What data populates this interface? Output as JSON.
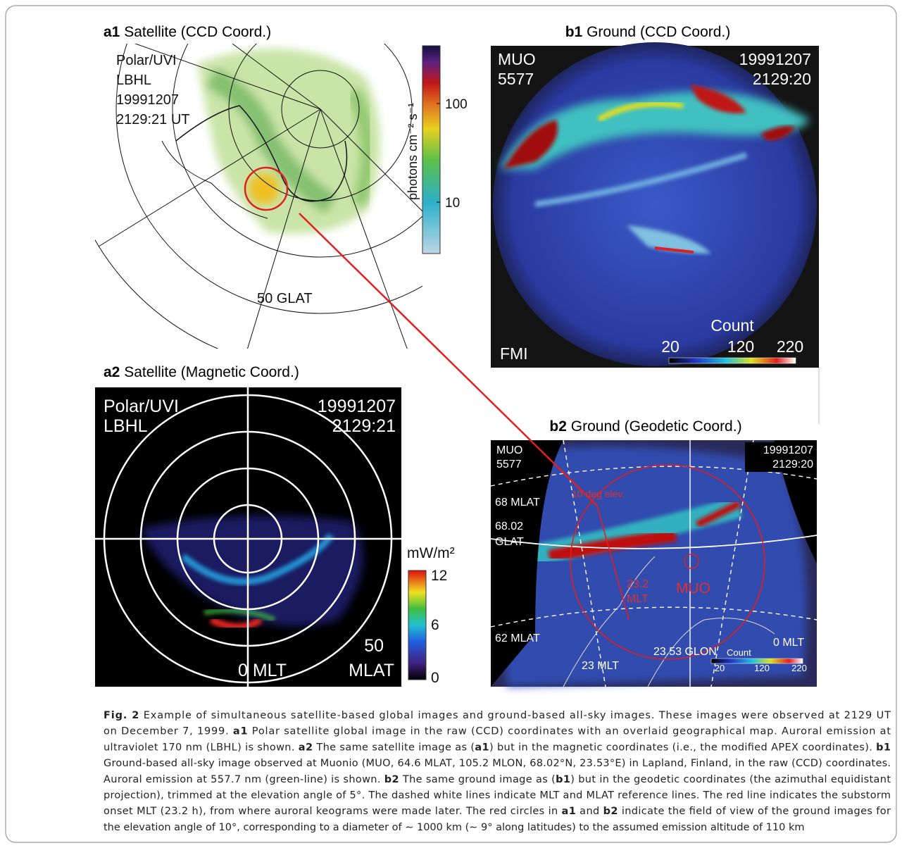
{
  "panels": {
    "a1": {
      "label": "a1",
      "title": "Satellite (CCD Coord.)",
      "texts": [
        "Polar/UVI",
        "LBHL",
        "19991207",
        "2129:21 UT",
        "50 GLAT"
      ],
      "colorbar": {
        "label": "photons cm⁻² s⁻¹",
        "ticks": [
          "100",
          "10"
        ]
      }
    },
    "b1": {
      "label": "b1",
      "title": "Ground (CCD Coord.)",
      "texts": [
        "MUO",
        "5577",
        "19991207",
        "2129:20",
        "FMI"
      ],
      "colorbar": {
        "label": "Count",
        "ticks": [
          "20",
          "120",
          "220"
        ]
      }
    },
    "a2": {
      "label": "a2",
      "title": "Satellite (Magnetic Coord.)",
      "texts": [
        "Polar/UVI",
        "LBHL",
        "19991207",
        "2129:21",
        "50",
        "MLAT",
        "0 MLT"
      ],
      "colorbar": {
        "label": "mW/m²",
        "ticks": [
          "12",
          "6",
          "0"
        ]
      }
    },
    "b2": {
      "label": "b2",
      "title": "Ground (Geodetic Coord.)",
      "texts": [
        "MUO",
        "5577",
        "19991207",
        "2129:20",
        "10 deg elev.",
        "68 MLAT",
        "68.02",
        "GLAT",
        "23.2",
        "MLT",
        "MUO",
        "62 MLAT",
        "23.53 GLON",
        "0 MLT",
        "23 MLT"
      ],
      "colorbar": {
        "label": "Count",
        "ticks": [
          "20",
          "120",
          "220"
        ]
      }
    }
  },
  "caption": {
    "lines": [
      [
        {
          "text": "Fig. 2",
          "bold": true
        },
        {
          "text": "  Example of simultaneous satellite-based global images and ground-based all-sky images. These images were observed at 2129 UT"
        }
      ],
      [
        {
          "text": "on December 7, 1999. "
        },
        {
          "text": "a1",
          "bold": true
        },
        {
          "text": " Polar satellite global image in the raw (CCD) coordinates with an overlaid geographical map. Auroral emission at"
        }
      ],
      [
        {
          "text": "ultraviolet 170 nm (LBHL) is shown. "
        },
        {
          "text": "a2",
          "bold": true
        },
        {
          "text": " The same satellite image as ("
        },
        {
          "text": "a1",
          "bold": true
        },
        {
          "text": ") but in the magnetic coordinates (i.e., the modified APEX coordinates). "
        },
        {
          "text": "b1",
          "bold": true
        }
      ],
      [
        {
          "text": "Ground-based all-sky image observed at Muonio (MUO, 64.6 MLAT, 105.2 MLON, 68.02°N, 23.53°E) in Lapland, Finland, in the raw (CCD) coordinates."
        }
      ],
      [
        {
          "text": "Auroral emission at 557.7 nm (green-line) is shown. "
        },
        {
          "text": "b2",
          "bold": true
        },
        {
          "text": " The same ground image as ("
        },
        {
          "text": "b1",
          "bold": true
        },
        {
          "text": ") but in the geodetic coordinates (the azimuthal equidistant"
        }
      ],
      [
        {
          "text": "projection), trimmed at the elevation angle of 5°. The dashed white lines indicate MLT and MLAT reference lines. The red line indicates the substorm"
        }
      ],
      [
        {
          "text": "onset MLT (23.2 h), from where auroral keograms were made later. The red circles in "
        },
        {
          "text": "a1",
          "bold": true
        },
        {
          "text": " and "
        },
        {
          "text": "b2",
          "bold": true
        },
        {
          "text": " indicate the field of view of the ground images for"
        }
      ],
      [
        {
          "text": "the elevation angle of 10°, corresponding to a diameter of ∼ 1000 km (∼ 9° along latitudes) to the assumed emission altitude of 110 km"
        }
      ]
    ]
  }
}
